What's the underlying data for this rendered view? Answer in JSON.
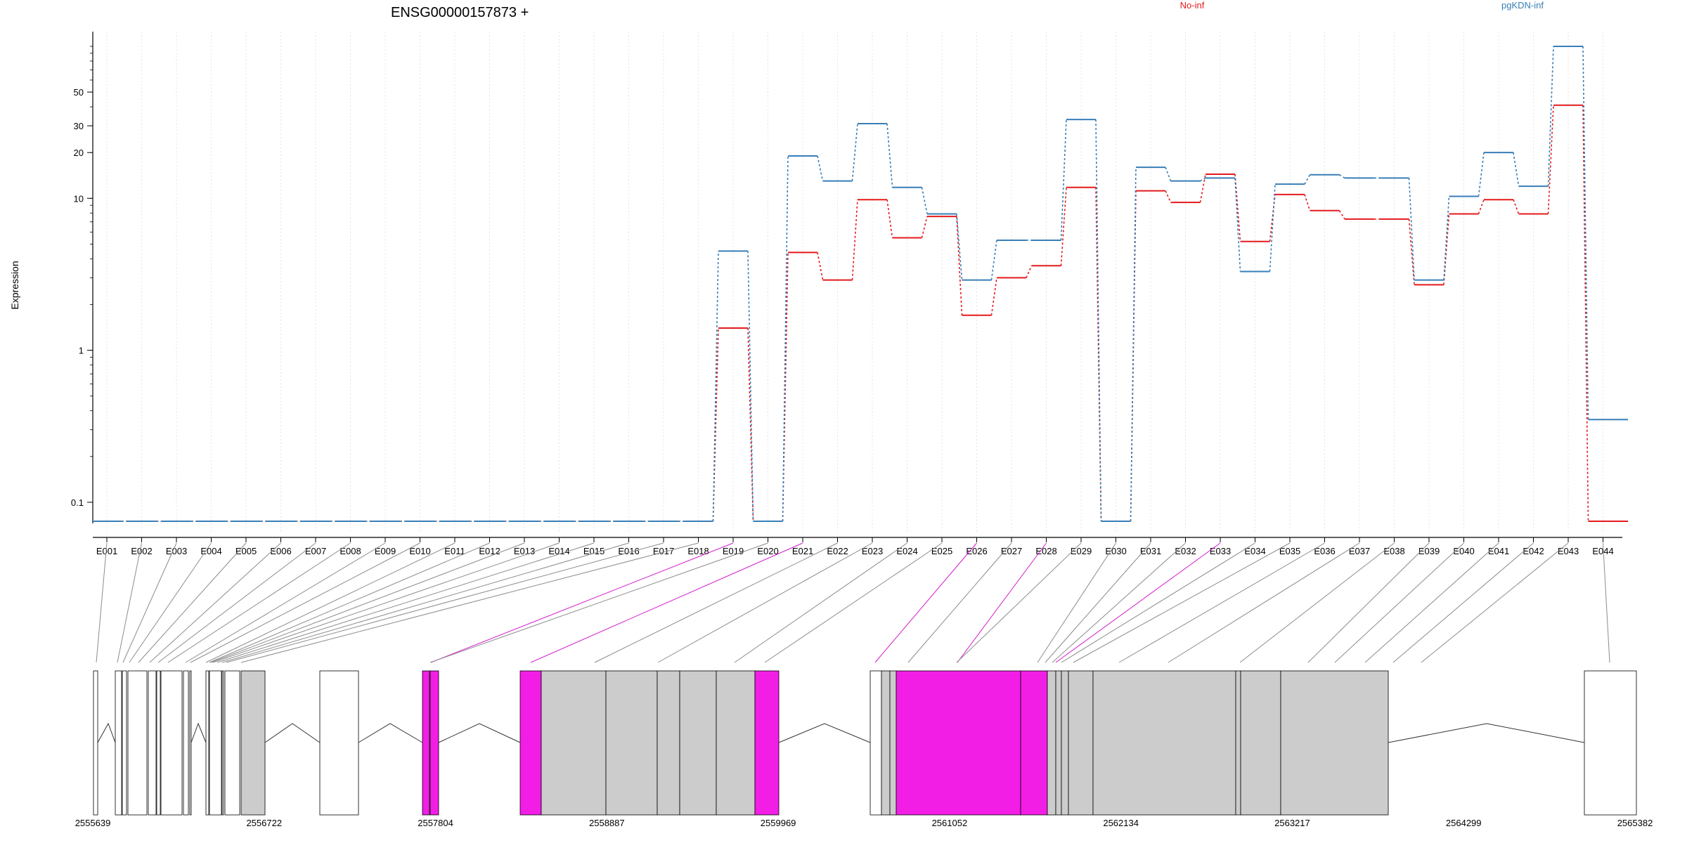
{
  "chart_data": {
    "type": "line",
    "title": "ENSG00000157873 +",
    "ylabel": "Expression",
    "xlabel": "",
    "y_scale": "log",
    "ylim": [
      0.075,
      125
    ],
    "y_ticks": [
      0.1,
      1,
      10,
      20,
      30,
      50
    ],
    "y_tick_labels": [
      "0.1",
      "1",
      "10",
      "20",
      "30",
      "50"
    ],
    "grid": "vertical dotted lines at each exon",
    "legend_placement": "top",
    "colors": {
      "No-inf": "#e41a1c",
      "pgKDN-inf": "#377eb8",
      "highlight": "#f21ee6",
      "exon_fill": "#cccccc"
    },
    "categories": [
      "E001",
      "E002",
      "E003",
      "E004",
      "E005",
      "E006",
      "E007",
      "E008",
      "E009",
      "E010",
      "E011",
      "E012",
      "E013",
      "E014",
      "E015",
      "E016",
      "E017",
      "E018",
      "E019",
      "E020",
      "E021",
      "E022",
      "E023",
      "E024",
      "E025",
      "E026",
      "E027",
      "E028",
      "E029",
      "E030",
      "E031",
      "E032",
      "E033",
      "E034",
      "E035",
      "E036",
      "E037",
      "E038",
      "E039",
      "E040",
      "E041",
      "E042",
      "E043",
      "E044"
    ],
    "series": [
      {
        "name": "No-inf",
        "color": "#e41a1c",
        "values": [
          0.075,
          0.075,
          0.075,
          0.075,
          0.075,
          0.075,
          0.075,
          0.075,
          0.075,
          0.075,
          0.075,
          0.075,
          0.075,
          0.075,
          0.075,
          0.075,
          0.075,
          0.075,
          1.4,
          0.075,
          4.4,
          2.9,
          9.8,
          5.5,
          7.6,
          1.7,
          3.0,
          3.6,
          11.8,
          0.075,
          11.2,
          9.4,
          14.4,
          5.2,
          10.6,
          8.3,
          7.3,
          7.3,
          2.7,
          7.9,
          9.8,
          7.9,
          41,
          0.075
        ]
      },
      {
        "name": "pgKDN-inf",
        "color": "#377eb8",
        "values": [
          0.075,
          0.075,
          0.075,
          0.075,
          0.075,
          0.075,
          0.075,
          0.075,
          0.075,
          0.075,
          0.075,
          0.075,
          0.075,
          0.075,
          0.075,
          0.075,
          0.075,
          0.075,
          4.5,
          0.075,
          19,
          13,
          31,
          11.8,
          7.9,
          2.9,
          5.3,
          5.3,
          33,
          0.075,
          16,
          13,
          13.6,
          3.3,
          12.4,
          14.3,
          13.6,
          13.6,
          2.9,
          10.3,
          20,
          12,
          100,
          0.35
        ]
      }
    ],
    "gene_model": {
      "coord_ticks": [
        "2555639",
        "2556722",
        "2557804",
        "2558887",
        "2559969",
        "2561052",
        "2562134",
        "2563217",
        "2564299",
        "2565382"
      ],
      "exon_order": [
        "E001",
        "E002",
        "E003",
        "E004",
        "E005",
        "E006",
        "E007",
        "E008",
        "E009",
        "E010",
        "E011",
        "E012",
        "E013",
        "E014",
        "E015",
        "E016",
        "E017",
        "E018",
        "E019",
        "E020",
        "E021",
        "E022",
        "E023",
        "E024",
        "E025",
        "E026",
        "E027",
        "E028",
        "E029",
        "E030",
        "E031",
        "E032",
        "E033",
        "E034",
        "E035",
        "E036",
        "E037",
        "E038",
        "E039",
        "E040",
        "E041",
        "E042",
        "E043",
        "E044"
      ],
      "highlighted_exons": [
        "E019",
        "E021",
        "E026",
        "E028",
        "E033"
      ]
    }
  }
}
